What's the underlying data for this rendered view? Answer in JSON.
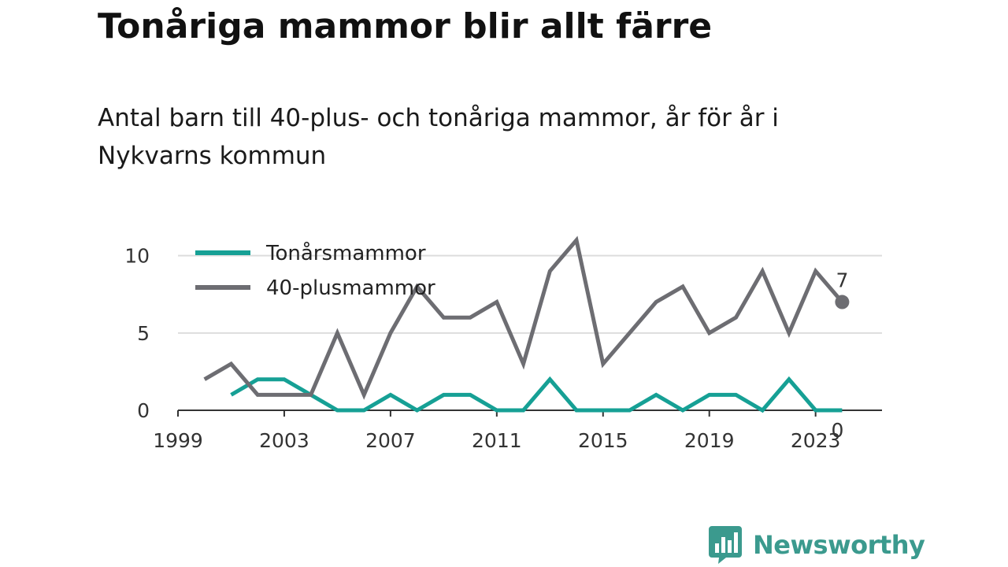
{
  "title": "Tonåriga mammor blir allt färre",
  "subtitle": "Antal barn till 40-plus- och tonåriga mammor, år för år i Nykvarns kommun",
  "brand": {
    "name": "Newsworthy",
    "icon": "newsworthy-logo-icon",
    "color": "#3b9a8e"
  },
  "chart_data": {
    "type": "line",
    "x": [
      2000,
      2001,
      2002,
      2003,
      2004,
      2005,
      2006,
      2007,
      2008,
      2009,
      2010,
      2011,
      2012,
      2013,
      2014,
      2015,
      2016,
      2017,
      2018,
      2019,
      2020,
      2021,
      2022,
      2023,
      2024
    ],
    "series": [
      {
        "name": "Tonårsmammor",
        "color": "#16a095",
        "values": [
          null,
          1,
          2,
          2,
          1,
          0,
          0,
          1,
          0,
          1,
          1,
          0,
          0,
          2,
          0,
          0,
          0,
          1,
          0,
          1,
          1,
          0,
          2,
          0,
          0
        ],
        "end_label": "0"
      },
      {
        "name": "40-plusmammor",
        "color": "#6d6d72",
        "values": [
          2,
          3,
          1,
          1,
          1,
          5,
          1,
          5,
          8,
          6,
          6,
          7,
          3,
          9,
          11,
          3,
          5,
          7,
          8,
          5,
          6,
          9,
          5,
          9,
          7
        ],
        "end_label": "7"
      }
    ],
    "xticks": [
      "1999",
      "2003",
      "2007",
      "2011",
      "2015",
      "2019",
      "2023"
    ],
    "yticks": [
      "0",
      "5",
      "10"
    ],
    "xlim": [
      1999,
      2025.5
    ],
    "ylim": [
      0,
      11
    ],
    "xlabel": "",
    "ylabel": "",
    "grid": true,
    "legend": "top-left"
  }
}
